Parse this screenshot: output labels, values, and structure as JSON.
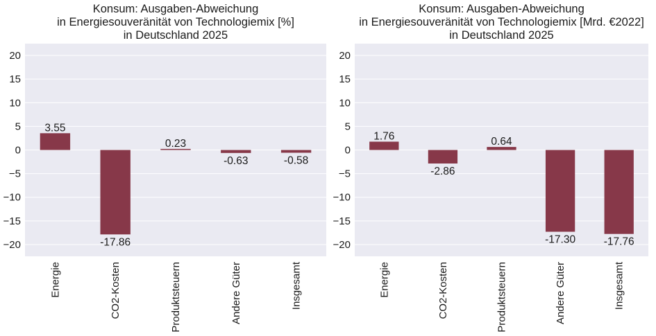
{
  "chart_data": [
    {
      "type": "bar",
      "title_lines": [
        "Konsum: Ausgaben-Abweichung",
        "in Energiesouveränität von Technologiemix [%]",
        "in Deutschland 2025"
      ],
      "categories": [
        "Energie",
        "CO2-Kosten",
        "Produktsteuern",
        "Andere Güter",
        "Insgesamt"
      ],
      "values": [
        3.55,
        -17.86,
        0.23,
        -0.63,
        -0.58
      ],
      "value_labels": [
        "3.55",
        "-17.86",
        "0.23",
        "-0.63",
        "-0.58"
      ],
      "ylim": [
        -22.5,
        22.5
      ],
      "yticks": [
        20,
        15,
        10,
        5,
        0,
        -5,
        -10,
        -15,
        -20
      ],
      "ytick_labels": [
        "20",
        "15",
        "10",
        "5",
        "0",
        "−5",
        "−10",
        "−15",
        "−20"
      ],
      "grid": true
    },
    {
      "type": "bar",
      "title_lines": [
        "Konsum: Ausgaben-Abweichung",
        "in Energiesouveränität von Technologiemix [Mrd. €2022]",
        "in Deutschland 2025"
      ],
      "categories": [
        "Energie",
        "CO2-Kosten",
        "Produktsteuern",
        "Andere Güter",
        "Insgesamt"
      ],
      "values": [
        1.76,
        -2.86,
        0.64,
        -17.3,
        -17.76
      ],
      "value_labels": [
        "1.76",
        "-2.86",
        "0.64",
        "-17.30",
        "-17.76"
      ],
      "ylim": [
        -22.5,
        22.5
      ],
      "yticks": [
        20,
        15,
        10,
        5,
        0,
        -5,
        -10,
        -15,
        -20
      ],
      "ytick_labels": [
        "20",
        "15",
        "10",
        "5",
        "0",
        "−5",
        "−10",
        "−15",
        "−20"
      ],
      "grid": true
    }
  ],
  "colors": {
    "bar": "#873849",
    "plot_background": "#eaeaf2",
    "grid": "#ffffff"
  }
}
